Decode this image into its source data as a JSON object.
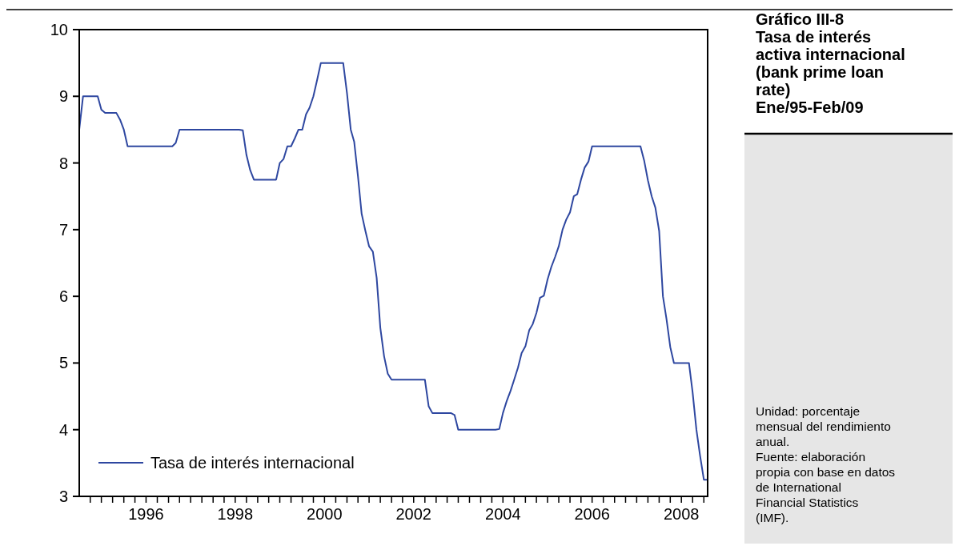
{
  "chart_data": {
    "type": "line",
    "title": "Gráfico III-8",
    "subtitle": "Tasa de interés activa internacional (bank prime loan rate)\nEne/95-Feb/09",
    "annotations": [
      "Unidad: porcentaje mensual del rendimiento anual.",
      "Fuente: elaboración propia con base en datos de International Financial Statistics (IMF)."
    ],
    "x": [
      "1995-01",
      "1995-02",
      "1995-03",
      "1995-04",
      "1995-05",
      "1995-06",
      "1995-07",
      "1995-08",
      "1995-09",
      "1995-10",
      "1995-11",
      "1995-12",
      "1996-01",
      "1996-02",
      "1996-03",
      "1996-04",
      "1996-05",
      "1996-06",
      "1996-07",
      "1996-08",
      "1996-09",
      "1996-10",
      "1996-11",
      "1996-12",
      "1997-01",
      "1997-02",
      "1997-03",
      "1997-04",
      "1997-05",
      "1997-06",
      "1997-07",
      "1997-08",
      "1997-09",
      "1997-10",
      "1997-11",
      "1997-12",
      "1998-01",
      "1998-02",
      "1998-03",
      "1998-04",
      "1998-05",
      "1998-06",
      "1998-07",
      "1998-08",
      "1998-09",
      "1998-10",
      "1998-11",
      "1998-12",
      "1999-01",
      "1999-02",
      "1999-03",
      "1999-04",
      "1999-05",
      "1999-06",
      "1999-07",
      "1999-08",
      "1999-09",
      "1999-10",
      "1999-11",
      "1999-12",
      "2000-01",
      "2000-02",
      "2000-03",
      "2000-04",
      "2000-05",
      "2000-06",
      "2000-07",
      "2000-08",
      "2000-09",
      "2000-10",
      "2000-11",
      "2000-12",
      "2001-01",
      "2001-02",
      "2001-03",
      "2001-04",
      "2001-05",
      "2001-06",
      "2001-07",
      "2001-08",
      "2001-09",
      "2001-10",
      "2001-11",
      "2001-12",
      "2002-01",
      "2002-02",
      "2002-03",
      "2002-04",
      "2002-05",
      "2002-06",
      "2002-07",
      "2002-08",
      "2002-09",
      "2002-10",
      "2002-11",
      "2002-12",
      "2003-01",
      "2003-02",
      "2003-03",
      "2003-04",
      "2003-05",
      "2003-06",
      "2003-07",
      "2003-08",
      "2003-09",
      "2003-10",
      "2003-11",
      "2003-12",
      "2004-01",
      "2004-02",
      "2004-03",
      "2004-04",
      "2004-05",
      "2004-06",
      "2004-07",
      "2004-08",
      "2004-09",
      "2004-10",
      "2004-11",
      "2004-12",
      "2005-01",
      "2005-02",
      "2005-03",
      "2005-04",
      "2005-05",
      "2005-06",
      "2005-07",
      "2005-08",
      "2005-09",
      "2005-10",
      "2005-11",
      "2005-12",
      "2006-01",
      "2006-02",
      "2006-03",
      "2006-04",
      "2006-05",
      "2006-06",
      "2006-07",
      "2006-08",
      "2006-09",
      "2006-10",
      "2006-11",
      "2006-12",
      "2007-01",
      "2007-02",
      "2007-03",
      "2007-04",
      "2007-05",
      "2007-06",
      "2007-07",
      "2007-08",
      "2007-09",
      "2007-10",
      "2007-11",
      "2007-12",
      "2008-01",
      "2008-02",
      "2008-03",
      "2008-04",
      "2008-05",
      "2008-06",
      "2008-07",
      "2008-08",
      "2008-09",
      "2008-10",
      "2008-11",
      "2008-12",
      "2009-01",
      "2009-02"
    ],
    "series": [
      {
        "name": "Tasa de interés internacional",
        "color": "#2e47a0",
        "values": [
          8.5,
          9,
          9,
          9,
          9,
          9,
          8.8,
          8.75,
          8.75,
          8.75,
          8.75,
          8.65,
          8.5,
          8.25,
          8.25,
          8.25,
          8.25,
          8.25,
          8.25,
          8.25,
          8.25,
          8.25,
          8.25,
          8.25,
          8.25,
          8.25,
          8.3,
          8.5,
          8.5,
          8.5,
          8.5,
          8.5,
          8.5,
          8.5,
          8.5,
          8.5,
          8.5,
          8.5,
          8.5,
          8.5,
          8.5,
          8.5,
          8.5,
          8.5,
          8.49,
          8.12,
          7.89,
          7.75,
          7.75,
          7.75,
          7.75,
          7.75,
          7.75,
          7.75,
          8,
          8.06,
          8.25,
          8.25,
          8.37,
          8.5,
          8.5,
          8.73,
          8.83,
          9,
          9.24,
          9.5,
          9.5,
          9.5,
          9.5,
          9.5,
          9.5,
          9.5,
          9.05,
          8.5,
          8.32,
          7.8,
          7.24,
          6.98,
          6.75,
          6.67,
          6.28,
          5.53,
          5.1,
          4.84,
          4.75,
          4.75,
          4.75,
          4.75,
          4.75,
          4.75,
          4.75,
          4.75,
          4.75,
          4.75,
          4.35,
          4.25,
          4.25,
          4.25,
          4.25,
          4.25,
          4.25,
          4.22,
          4,
          4,
          4,
          4,
          4,
          4,
          4,
          4,
          4,
          4,
          4,
          4.01,
          4.25,
          4.43,
          4.58,
          4.75,
          4.93,
          5.15,
          5.25,
          5.49,
          5.58,
          5.75,
          5.98,
          6.01,
          6.25,
          6.44,
          6.59,
          6.75,
          7,
          7.15,
          7.26,
          7.5,
          7.53,
          7.75,
          7.93,
          8.02,
          8.25,
          8.25,
          8.25,
          8.25,
          8.25,
          8.25,
          8.25,
          8.25,
          8.25,
          8.25,
          8.25,
          8.25,
          8.25,
          8.25,
          8.03,
          7.74,
          7.5,
          7.33,
          6.98,
          6,
          5.66,
          5.24,
          5,
          5,
          5,
          5,
          5,
          4.56,
          4,
          3.61,
          3.25,
          3.25
        ]
      }
    ],
    "xlim": [
      "1995-01",
      "2009-02"
    ],
    "xticks": [
      {
        "value": "1995-04",
        "label": null
      },
      {
        "value": "1995-07",
        "label": null
      },
      {
        "value": "1995-10",
        "label": null
      },
      {
        "value": "1996-01",
        "label": null
      },
      {
        "value": "1996-04",
        "label": null
      },
      {
        "value": "1996-07",
        "label": "1996"
      },
      {
        "value": "1996-10",
        "label": null
      },
      {
        "value": "1997-01",
        "label": null
      },
      {
        "value": "1997-04",
        "label": null
      },
      {
        "value": "1997-07",
        "label": null
      },
      {
        "value": "1997-10",
        "label": null
      },
      {
        "value": "1998-01",
        "label": null
      },
      {
        "value": "1998-04",
        "label": null
      },
      {
        "value": "1998-07",
        "label": "1998"
      },
      {
        "value": "1998-10",
        "label": null
      },
      {
        "value": "1999-01",
        "label": null
      },
      {
        "value": "1999-04",
        "label": null
      },
      {
        "value": "1999-07",
        "label": null
      },
      {
        "value": "1999-10",
        "label": null
      },
      {
        "value": "2000-01",
        "label": null
      },
      {
        "value": "2000-04",
        "label": null
      },
      {
        "value": "2000-07",
        "label": "2000"
      },
      {
        "value": "2000-10",
        "label": null
      },
      {
        "value": "2001-01",
        "label": null
      },
      {
        "value": "2001-04",
        "label": null
      },
      {
        "value": "2001-07",
        "label": null
      },
      {
        "value": "2001-10",
        "label": null
      },
      {
        "value": "2002-01",
        "label": null
      },
      {
        "value": "2002-04",
        "label": null
      },
      {
        "value": "2002-07",
        "label": "2002"
      },
      {
        "value": "2002-10",
        "label": null
      },
      {
        "value": "2003-01",
        "label": null
      },
      {
        "value": "2003-04",
        "label": null
      },
      {
        "value": "2003-07",
        "label": null
      },
      {
        "value": "2003-10",
        "label": null
      },
      {
        "value": "2004-01",
        "label": null
      },
      {
        "value": "2004-04",
        "label": null
      },
      {
        "value": "2004-07",
        "label": "2004"
      },
      {
        "value": "2004-10",
        "label": null
      },
      {
        "value": "2005-01",
        "label": null
      },
      {
        "value": "2005-04",
        "label": null
      },
      {
        "value": "2005-07",
        "label": null
      },
      {
        "value": "2005-10",
        "label": null
      },
      {
        "value": "2006-01",
        "label": null
      },
      {
        "value": "2006-04",
        "label": null
      },
      {
        "value": "2006-07",
        "label": "2006"
      },
      {
        "value": "2006-10",
        "label": null
      },
      {
        "value": "2007-01",
        "label": null
      },
      {
        "value": "2007-04",
        "label": null
      },
      {
        "value": "2007-07",
        "label": null
      },
      {
        "value": "2007-10",
        "label": null
      },
      {
        "value": "2008-01",
        "label": null
      },
      {
        "value": "2008-04",
        "label": null
      },
      {
        "value": "2008-07",
        "label": "2008"
      },
      {
        "value": "2008-10",
        "label": null
      },
      {
        "value": "2009-01",
        "label": null
      }
    ],
    "ylim": [
      3,
      10
    ],
    "yticks": [
      3,
      4,
      5,
      6,
      7,
      8,
      9,
      10
    ],
    "grid": false,
    "legend": "bottom left",
    "marker": "none",
    "line_style": "solid"
  }
}
